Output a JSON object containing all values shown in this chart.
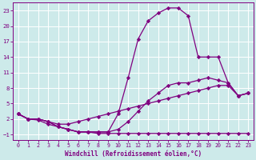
{
  "xlabel": "Windchill (Refroidissement éolien,°C)",
  "background_color": "#cdeaea",
  "grid_color": "#ffffff",
  "line_color": "#800080",
  "xlim": [
    -0.5,
    23.5
  ],
  "ylim": [
    -2,
    24.5
  ],
  "xticks": [
    0,
    1,
    2,
    3,
    4,
    5,
    6,
    7,
    8,
    9,
    10,
    11,
    12,
    13,
    14,
    15,
    16,
    17,
    18,
    19,
    20,
    21,
    22,
    23
  ],
  "yticks": [
    -1,
    2,
    5,
    8,
    11,
    14,
    17,
    20,
    23
  ],
  "curve_top_x": [
    0,
    1,
    2,
    3,
    4,
    5,
    6,
    7,
    8,
    9,
    10,
    11,
    12,
    13,
    14,
    15,
    16,
    17,
    18,
    19,
    20,
    21,
    22,
    23
  ],
  "curve_top_y": [
    3,
    2,
    2,
    1.5,
    0.5,
    0,
    -0.5,
    -0.5,
    -0.5,
    -0.5,
    3,
    10,
    17.5,
    21,
    22.5,
    23.5,
    23.5,
    22,
    14,
    14,
    14,
    9,
    6.5,
    7
  ],
  "curve_mid1_x": [
    0,
    1,
    2,
    3,
    4,
    5,
    6,
    7,
    8,
    9,
    10,
    11,
    12,
    13,
    14,
    15,
    16,
    17,
    18,
    19,
    20,
    21,
    22,
    23
  ],
  "curve_mid1_y": [
    3,
    2,
    2,
    1.5,
    0.5,
    0,
    -0.5,
    -0.5,
    -0.5,
    -0.5,
    0,
    1.5,
    3.5,
    5.5,
    7,
    8.5,
    9,
    9,
    9.5,
    10,
    9.5,
    9,
    6.5,
    7
  ],
  "curve_mid2_x": [
    0,
    1,
    2,
    3,
    4,
    5,
    6,
    7,
    8,
    9,
    10,
    11,
    12,
    13,
    14,
    15,
    16,
    17,
    18,
    19,
    20,
    21,
    22,
    23
  ],
  "curve_mid2_y": [
    3,
    2,
    2,
    1.5,
    1,
    1,
    1.5,
    2,
    2.5,
    3,
    3.5,
    4,
    4.5,
    5,
    5.5,
    6,
    6.5,
    7,
    7.5,
    8,
    8.5,
    8.5,
    6.5,
    7
  ],
  "curve_bot_x": [
    0,
    1,
    2,
    3,
    4,
    5,
    6,
    7,
    8,
    9,
    10,
    11,
    12,
    13,
    14,
    15,
    16,
    17,
    18,
    19,
    20,
    21,
    22,
    23
  ],
  "curve_bot_y": [
    3,
    2,
    1.8,
    1,
    0.5,
    0,
    -0.5,
    -0.5,
    -0.8,
    -0.8,
    -0.8,
    -0.8,
    -0.8,
    -0.8,
    -0.8,
    -0.8,
    -0.8,
    -0.8,
    -0.8,
    -0.8,
    -0.8,
    -0.8,
    -0.8,
    -0.8
  ]
}
